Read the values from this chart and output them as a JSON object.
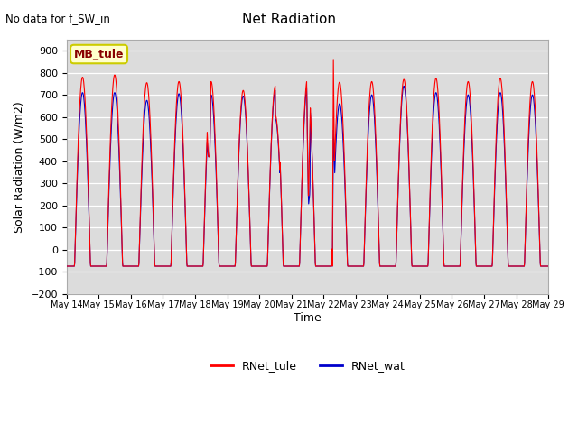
{
  "title": "Net Radiation",
  "subtitle": "No data for f_SW_in",
  "ylabel": "Solar Radiation (W/m2)",
  "xlabel": "Time",
  "ylim": [
    -200,
    950
  ],
  "yticks": [
    -200,
    -100,
    0,
    100,
    200,
    300,
    400,
    500,
    600,
    700,
    800,
    900
  ],
  "date_start": 14,
  "n_days": 15,
  "color_tule": "#FF0000",
  "color_wat": "#0000CC",
  "bg_color": "#DCDCDC",
  "legend_entries": [
    "RNet_tule",
    "RNet_wat"
  ],
  "annotation_box": "MB_tule",
  "annotation_box_bg": "#FFFFCC",
  "annotation_box_border": "#CCCC00",
  "annotation_text_color": "#880000",
  "peaks_tule": [
    780,
    790,
    755,
    760,
    760,
    720,
    740,
    770,
    860,
    760,
    770,
    775,
    760,
    775,
    760
  ],
  "peaks_wat": [
    710,
    710,
    675,
    705,
    700,
    695,
    720,
    745,
    660,
    700,
    740,
    710,
    700,
    710,
    700
  ],
  "night_val": -75,
  "pts_per_day": 96
}
